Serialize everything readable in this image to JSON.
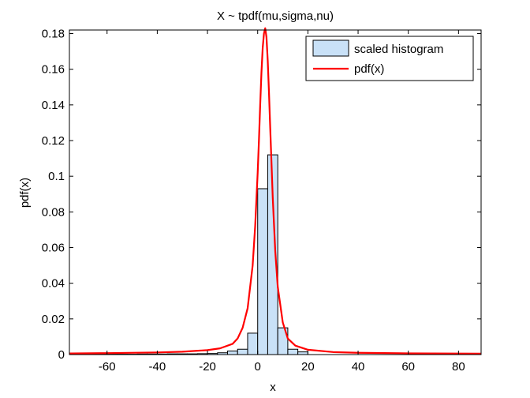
{
  "chart_data": {
    "type": "bar",
    "title": "X ~ tpdf(mu,sigma,nu)",
    "xlabel": "x",
    "ylabel": "pdf(x)",
    "xlim": [
      -75,
      89
    ],
    "ylim": [
      0,
      0.182
    ],
    "xticks": [
      -60,
      -40,
      -20,
      0,
      20,
      40,
      60,
      80
    ],
    "yticks": [
      0,
      0.02,
      0.04,
      0.06,
      0.08,
      0.1,
      0.12,
      0.14,
      0.16,
      0.18
    ],
    "xtick_labels": [
      "-60",
      "-40",
      "-20",
      "0",
      "20",
      "40",
      "60",
      "80"
    ],
    "ytick_labels": [
      "0",
      "0.02",
      "0.04",
      "0.06",
      "0.08",
      "0.1",
      "0.12",
      "0.14",
      "0.16",
      "0.18"
    ],
    "legend_position": "top-right",
    "series": [
      {
        "name": "scaled histogram",
        "kind": "histogram",
        "color": "#c9e1f7",
        "edge_color": "#000000",
        "bin_edges": [
          -68,
          -64,
          -60,
          -56,
          -52,
          -48,
          -44,
          -40,
          -36,
          -32,
          -28,
          -24,
          -20,
          -16,
          -12,
          -8,
          -4,
          0,
          4,
          8,
          12,
          16,
          20
        ],
        "values": [
          0.0003,
          0.0002,
          0.0002,
          0.0002,
          0.0002,
          0.0003,
          0.0003,
          0.0003,
          0.0004,
          0.0004,
          0.0004,
          0.0005,
          0.0006,
          0.001,
          0.002,
          0.003,
          0.012,
          0.093,
          0.112,
          0.015,
          0.003,
          0.0015
        ]
      },
      {
        "name": "pdf(x)",
        "kind": "line",
        "color": "#ff0000",
        "x": [
          -75,
          -60,
          -40,
          -30,
          -20,
          -15,
          -10,
          -8,
          -6,
          -4,
          -2,
          -1,
          0,
          0.5,
          1,
          1.5,
          2,
          2.5,
          3,
          3.5,
          4,
          4.5,
          5,
          6,
          7,
          8,
          10,
          12,
          15,
          20,
          30,
          40,
          60,
          89
        ],
        "values": [
          0.0006,
          0.0008,
          0.0012,
          0.0016,
          0.0025,
          0.0035,
          0.006,
          0.009,
          0.015,
          0.026,
          0.05,
          0.072,
          0.102,
          0.12,
          0.14,
          0.158,
          0.172,
          0.18,
          0.183,
          0.178,
          0.165,
          0.147,
          0.127,
          0.088,
          0.058,
          0.038,
          0.018,
          0.009,
          0.005,
          0.0027,
          0.0014,
          0.001,
          0.0007,
          0.0005
        ]
      }
    ]
  }
}
